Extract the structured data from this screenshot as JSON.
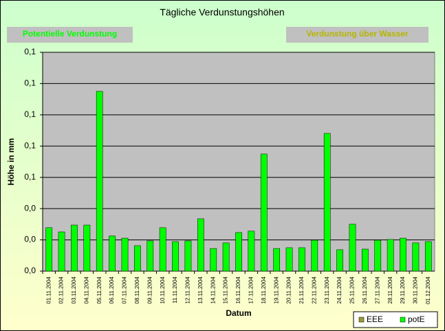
{
  "chart_data": {
    "type": "bar",
    "title": "Tägliche Verdunstungshöhen",
    "annotations": [
      {
        "text": "Potentielle Verdunstung",
        "color": "#00ff00"
      },
      {
        "text": "Verdunstung über Wasser",
        "color": "#b5b500"
      }
    ],
    "xlabel": "Datum",
    "ylabel": "Höhe in mm",
    "categories": [
      "01.11.2004",
      "02.11.2004",
      "03.11.2004",
      "04.11.2004",
      "05.11.2004",
      "06.11.2004",
      "07.11.2004",
      "08.11.2004",
      "09.11.2004",
      "10.11.2004",
      "11.11.2004",
      "12.11.2004",
      "13.11.2004",
      "14.11.2004",
      "15.11.2004",
      "16.11.2004",
      "17.11.2004",
      "18.11.2004",
      "19.11.2004",
      "20.11.2004",
      "21.11.2004",
      "22.11.2004",
      "23.11.2004",
      "24.11.2004",
      "25.11.2004",
      "26.11.2004",
      "27.11.2004",
      "28.11.2004",
      "29.11.2004",
      "30.11.2004",
      "01.12.2004"
    ],
    "series": [
      {
        "name": "EEE",
        "color": "#999933",
        "values": [
          0,
          0,
          0,
          0,
          0,
          0,
          0,
          0,
          0,
          0,
          0,
          0,
          0,
          0,
          0,
          0,
          0,
          0,
          0,
          0,
          0,
          0,
          0,
          0,
          0,
          0,
          0,
          0,
          0,
          0,
          0
        ]
      },
      {
        "name": "potE",
        "color": "#00ff00",
        "values": [
          0.0278,
          0.0251,
          0.0295,
          0.0295,
          0.115,
          0.0225,
          0.0211,
          0.0163,
          0.0194,
          0.0278,
          0.0189,
          0.0194,
          0.0335,
          0.0145,
          0.0181,
          0.0247,
          0.0256,
          0.0749,
          0.0145,
          0.015,
          0.015,
          0.0198,
          0.0881,
          0.0137,
          0.03,
          0.0141,
          0.0198,
          0.0203,
          0.0211,
          0.0181,
          0.0189
        ]
      }
    ],
    "ylim": [
      0,
      0.14
    ],
    "yticks": [
      {
        "value": 0,
        "label": "0,0"
      },
      {
        "value": 0.02,
        "label": "0,0"
      },
      {
        "value": 0.04,
        "label": "0,0"
      },
      {
        "value": 0.06,
        "label": "0,1"
      },
      {
        "value": 0.08,
        "label": "0,1"
      },
      {
        "value": 0.1,
        "label": "0,1"
      },
      {
        "value": 0.12,
        "label": "0,1"
      },
      {
        "value": 0.14,
        "label": "0,1"
      }
    ],
    "grid": true,
    "legend": "bottom-right"
  }
}
